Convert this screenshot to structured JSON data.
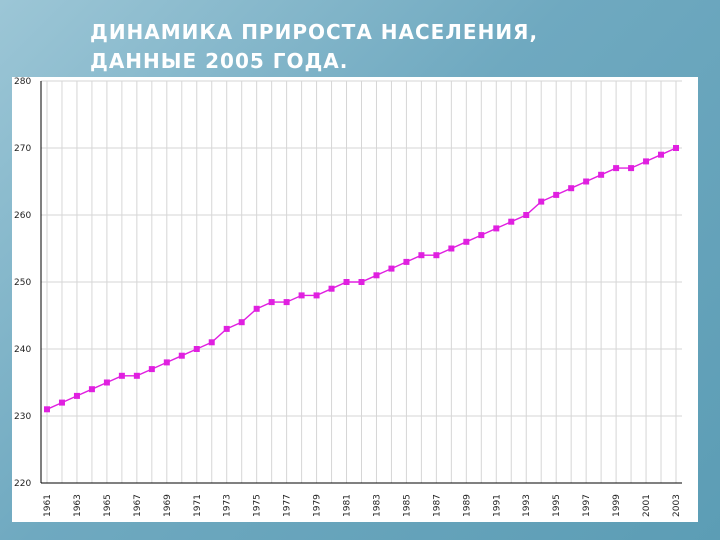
{
  "slide": {
    "title_line1": "ДИНАМИКА ПРИРОСТА НАСЕЛЕНИЯ,",
    "title_line2": "ДАННЫЕ 2005 ГОДА."
  },
  "colors": {
    "series": "#e020e0",
    "grid": "#d6d6d6",
    "axis": "#000000"
  },
  "chart_data": {
    "type": "line",
    "title": "",
    "xlabel": "",
    "ylabel": "",
    "ylim": [
      220,
      280
    ],
    "y_ticks": [
      220,
      230,
      240,
      250,
      260,
      270,
      280
    ],
    "x_tick_labels": [
      "1961",
      "1963",
      "1965",
      "1967",
      "1969",
      "1971",
      "1973",
      "1975",
      "1977",
      "1979",
      "1981",
      "1983",
      "1985",
      "1987",
      "1989",
      "1991",
      "1993",
      "1995",
      "1997",
      "1999",
      "2001",
      "2003"
    ],
    "grid": true,
    "legend": "none",
    "x": [
      1961,
      1962,
      1963,
      1964,
      1965,
      1966,
      1967,
      1968,
      1969,
      1970,
      1971,
      1972,
      1973,
      1974,
      1975,
      1976,
      1977,
      1978,
      1979,
      1980,
      1981,
      1982,
      1983,
      1984,
      1985,
      1986,
      1987,
      1988,
      1989,
      1990,
      1991,
      1992,
      1993,
      1994,
      1995,
      1996,
      1997,
      1998,
      1999,
      2000,
      2001,
      2002,
      2003
    ],
    "series": [
      {
        "values": [
          231,
          232,
          233,
          234,
          235,
          236,
          236,
          237,
          238,
          239,
          240,
          241,
          243,
          244,
          246,
          247,
          247,
          248,
          248,
          249,
          250,
          250,
          251,
          252,
          253,
          254,
          254,
          255,
          256,
          257,
          258,
          259,
          260,
          262,
          263,
          264,
          265,
          266,
          267,
          267,
          268,
          269,
          270
        ]
      }
    ]
  }
}
